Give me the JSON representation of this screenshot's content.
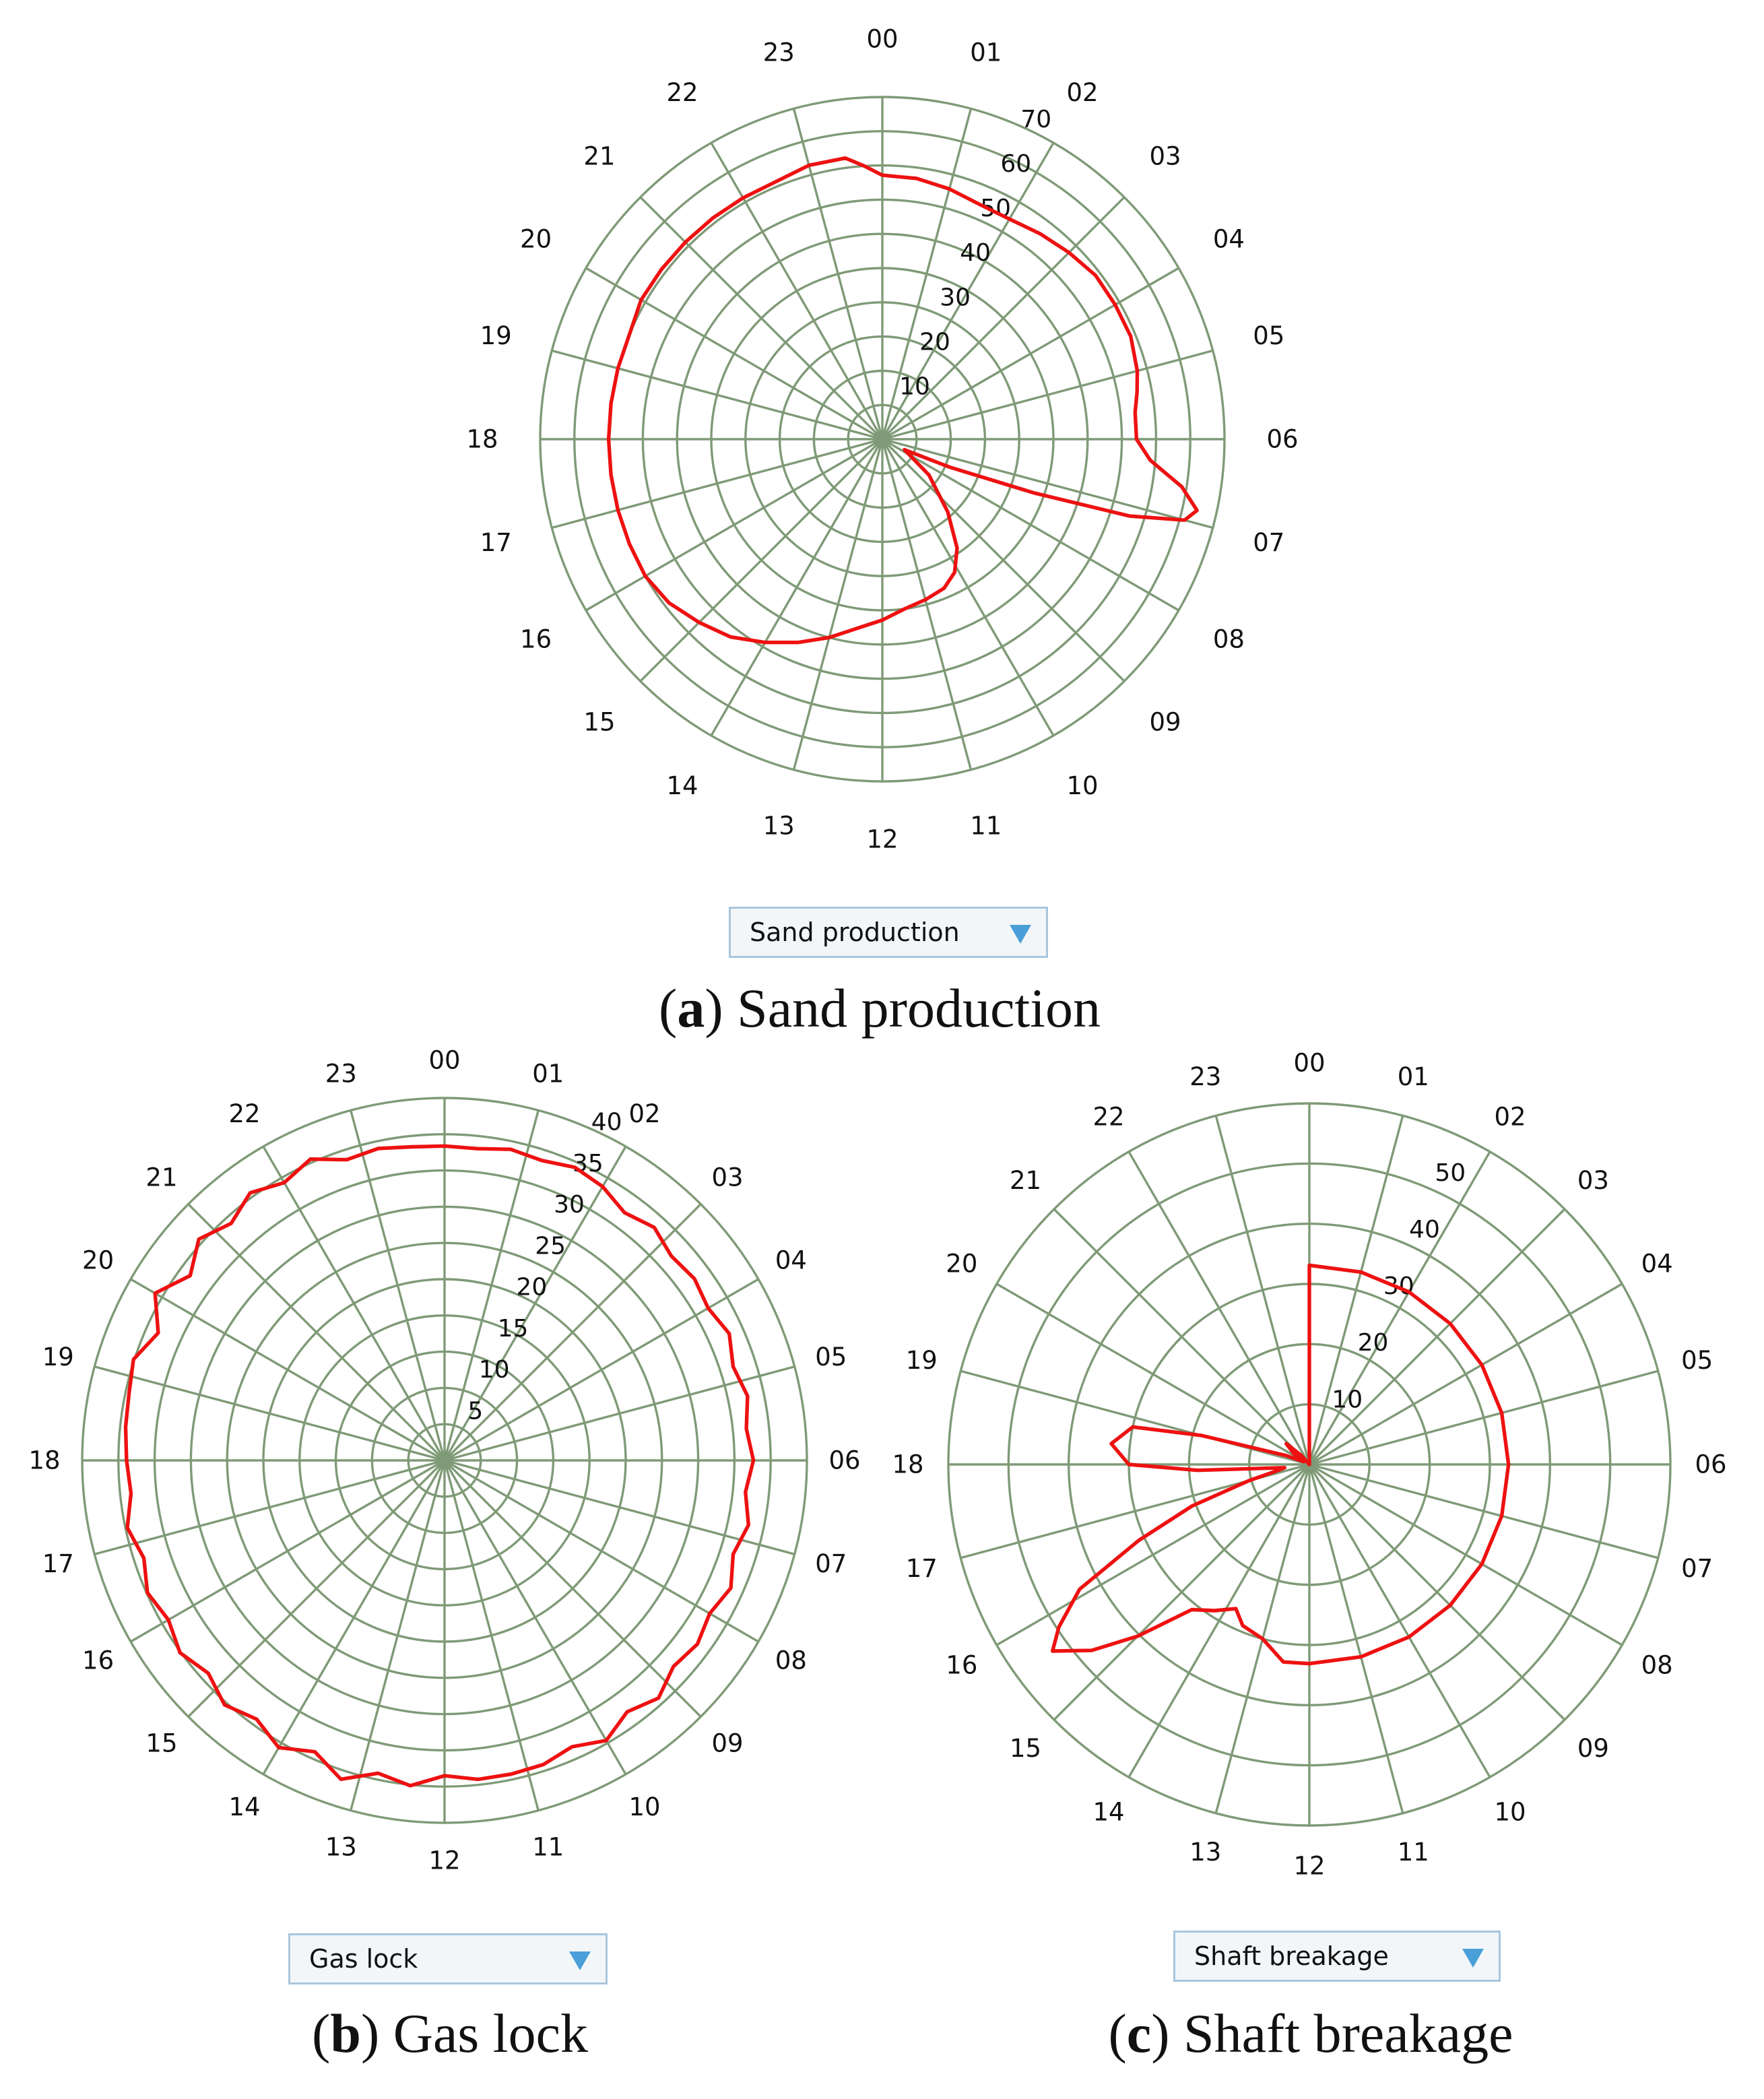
{
  "colors": {
    "grid": "#7f9a77",
    "trace": "#ee1111",
    "dropdown_border": "#a9c6dd",
    "caret": "#4a9fd8"
  },
  "panels": [
    {
      "letter": "a",
      "caption_text": "Sand production",
      "dropdown_label": "Sand production",
      "caret_icon": "chevron-down-icon"
    },
    {
      "letter": "b",
      "caption_text": "Gas lock",
      "dropdown_label": "Gas lock",
      "caret_icon": "chevron-down-icon"
    },
    {
      "letter": "c",
      "caption_text": "Shaft breakage",
      "dropdown_label": "Shaft breakage",
      "caret_icon": "chevron-down-icon"
    }
  ],
  "chart_data": [
    {
      "type": "polar-line",
      "title": "Sand production",
      "angular_labels": [
        "00",
        "01",
        "02",
        "03",
        "04",
        "05",
        "06",
        "07",
        "08",
        "09",
        "10",
        "11",
        "12",
        "13",
        "14",
        "15",
        "16",
        "17",
        "18",
        "19",
        "20",
        "21",
        "22",
        "23"
      ],
      "radial_ticks": [
        10,
        20,
        30,
        40,
        50,
        60,
        70
      ],
      "rmax": 70,
      "rings": 10,
      "grid": true,
      "series": [
        {
          "name": "Sand production",
          "points": [
            [
              0.0,
              54
            ],
            [
              0.5,
              53.8
            ],
            [
              1.0,
              53
            ],
            [
              1.5,
              52
            ],
            [
              2.0,
              52
            ],
            [
              2.5,
              53
            ],
            [
              3.0,
              54
            ],
            [
              3.5,
              55
            ],
            [
              4.0,
              55
            ],
            [
              4.5,
              55
            ],
            [
              5.0,
              54
            ],
            [
              5.3,
              53
            ],
            [
              5.6,
              52
            ],
            [
              6.0,
              52
            ],
            [
              6.3,
              55
            ],
            [
              6.6,
              62
            ],
            [
              6.85,
              66
            ],
            [
              7.0,
              64
            ],
            [
              7.15,
              53
            ],
            [
              7.3,
              33
            ],
            [
              7.5,
              15
            ],
            [
              7.7,
              5
            ],
            [
              8.5,
              12
            ],
            [
              9.2,
              20
            ],
            [
              9.7,
              27
            ],
            [
              10.1,
              31
            ],
            [
              10.5,
              33
            ],
            [
              11.0,
              34
            ],
            [
              11.5,
              35
            ],
            [
              12.0,
              37
            ],
            [
              12.5,
              39
            ],
            [
              13.0,
              42
            ],
            [
              13.5,
              45
            ],
            [
              14.0,
              48
            ],
            [
              14.5,
              51
            ],
            [
              15.0,
              53
            ],
            [
              15.5,
              55
            ],
            [
              16.0,
              56
            ],
            [
              16.5,
              56
            ],
            [
              17.0,
              56
            ],
            [
              17.5,
              56
            ],
            [
              18.0,
              56
            ],
            [
              18.5,
              56
            ],
            [
              19.0,
              56
            ],
            [
              19.5,
              56
            ],
            [
              20.0,
              57
            ],
            [
              20.5,
              57
            ],
            [
              21.0,
              57
            ],
            [
              21.5,
              57
            ],
            [
              22.0,
              57
            ],
            [
              22.5,
              57
            ],
            [
              23.0,
              58
            ],
            [
              23.5,
              58
            ],
            [
              23.75,
              56
            ],
            [
              24.0,
              54
            ]
          ]
        }
      ]
    },
    {
      "type": "polar-line",
      "title": "Gas lock",
      "angular_labels": [
        "00",
        "01",
        "02",
        "03",
        "04",
        "05",
        "06",
        "07",
        "08",
        "09",
        "10",
        "11",
        "12",
        "13",
        "14",
        "15",
        "16",
        "17",
        "18",
        "19",
        "20",
        "21",
        "22",
        "23"
      ],
      "radial_ticks": [
        5,
        10,
        15,
        20,
        25,
        30,
        35,
        40
      ],
      "rmax": 40,
      "rings": 10,
      "grid": true,
      "series": [
        {
          "name": "Gas lock",
          "points": [
            [
              0.0,
              34.7
            ],
            [
              0.4,
              34.6
            ],
            [
              0.8,
              35.1
            ],
            [
              1.2,
              34.8
            ],
            [
              1.6,
              35.4
            ],
            [
              2.0,
              34.9
            ],
            [
              2.4,
              33.8
            ],
            [
              2.8,
              34.6
            ],
            [
              3.2,
              33.7
            ],
            [
              3.6,
              34.1
            ],
            [
              4.0,
              33.6
            ],
            [
              4.4,
              34.4
            ],
            [
              4.8,
              33.5
            ],
            [
              5.2,
              34.2
            ],
            [
              5.6,
              33.5
            ],
            [
              6.0,
              34.1
            ],
            [
              6.4,
              33.4
            ],
            [
              6.8,
              34.3
            ],
            [
              7.2,
              33.5
            ],
            [
              7.6,
              34.6
            ],
            [
              8.0,
              33.8
            ],
            [
              8.4,
              34.5
            ],
            [
              8.8,
              34.0
            ],
            [
              9.2,
              35.3
            ],
            [
              9.6,
              34.3
            ],
            [
              10.0,
              35.7
            ],
            [
              10.4,
              34.6
            ],
            [
              10.8,
              35.3
            ],
            [
              11.2,
              35.4
            ],
            [
              11.6,
              35.4
            ],
            [
              12.0,
              34.8
            ],
            [
              12.4,
              36.1
            ],
            [
              12.8,
              35.3
            ],
            [
              13.2,
              37.0
            ],
            [
              13.6,
              35.2
            ],
            [
              14.0,
              36.6
            ],
            [
              14.4,
              35.3
            ],
            [
              14.8,
              36.3
            ],
            [
              15.2,
              35.1
            ],
            [
              15.6,
              36.1
            ],
            [
              16.0,
              35.2
            ],
            [
              16.4,
              35.9
            ],
            [
              16.8,
              34.9
            ],
            [
              17.2,
              35.8
            ],
            [
              17.6,
              34.8
            ],
            [
              18.0,
              35.1
            ],
            [
              18.4,
              35.4
            ],
            [
              18.8,
              35.6
            ],
            [
              19.2,
              36.1
            ],
            [
              19.6,
              34.6
            ],
            [
              20.0,
              36.9
            ],
            [
              20.4,
              34.7
            ],
            [
              20.8,
              36.5
            ],
            [
              21.2,
              35.2
            ],
            [
              21.6,
              36.5
            ],
            [
              22.0,
              35.4
            ],
            [
              22.4,
              36.4
            ],
            [
              22.8,
              34.9
            ],
            [
              23.2,
              35.2
            ],
            [
              23.6,
              34.8
            ],
            [
              24.0,
              34.7
            ]
          ]
        }
      ]
    },
    {
      "type": "polar-line",
      "title": "Shaft breakage",
      "angular_labels": [
        "00",
        "01",
        "02",
        "03",
        "04",
        "05",
        "06",
        "07",
        "08",
        "09",
        "10",
        "11",
        "12",
        "13",
        "14",
        "15",
        "16",
        "17",
        "18",
        "19",
        "20",
        "21",
        "22",
        "23"
      ],
      "radial_ticks": [
        10,
        20,
        30,
        40,
        50
      ],
      "rmax": 58,
      "rings": 6,
      "grid": true,
      "series": [
        {
          "name": "Shaft breakage",
          "points": [
            [
              0.0,
              32
            ],
            [
              1.0,
              32
            ],
            [
              2.0,
              32
            ],
            [
              3.0,
              32
            ],
            [
              4.0,
              32
            ],
            [
              5.0,
              32
            ],
            [
              6.0,
              32
            ],
            [
              7.0,
              32
            ],
            [
              8.0,
              32
            ],
            [
              9.0,
              32
            ],
            [
              10.0,
              32
            ],
            [
              11.0,
              32
            ],
            [
              12.0,
              32
            ],
            [
              12.5,
              32
            ],
            [
              13.0,
              29
            ],
            [
              13.5,
              28
            ],
            [
              13.8,
              26
            ],
            [
              14.2,
              28
            ],
            [
              14.6,
              30
            ],
            [
              15.0,
              39
            ],
            [
              15.3,
              46
            ],
            [
              15.6,
              51
            ],
            [
              15.8,
              48
            ],
            [
              16.1,
              42
            ],
            [
              16.4,
              30
            ],
            [
              16.7,
              20
            ],
            [
              17.0,
              10
            ],
            [
              17.3,
              5
            ],
            [
              17.5,
              4
            ],
            [
              17.8,
              18
            ],
            [
              18.0,
              29
            ],
            [
              18.4,
              32
            ],
            [
              18.8,
              29
            ],
            [
              19.0,
              18
            ],
            [
              19.4,
              4
            ],
            [
              19.8,
              1
            ],
            [
              20.3,
              3
            ],
            [
              20.8,
              5
            ],
            [
              21.2,
              2
            ],
            [
              23.9,
              0
            ],
            [
              0.0,
              32
            ]
          ]
        }
      ]
    }
  ]
}
